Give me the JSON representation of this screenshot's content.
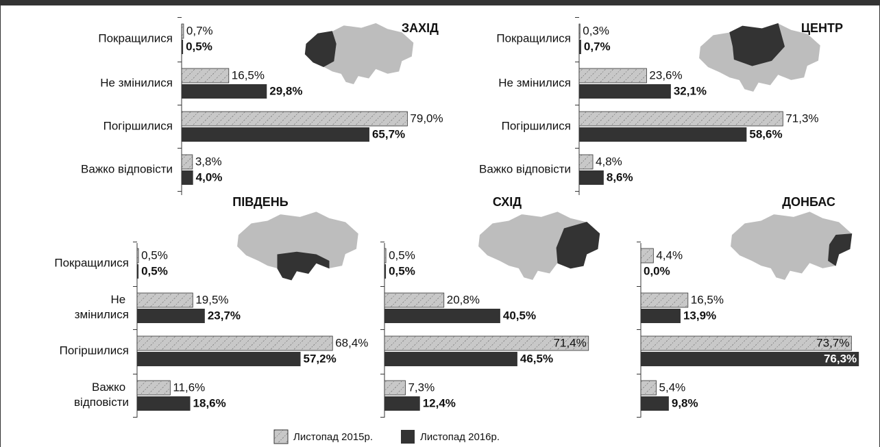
{
  "chart_data": [
    {
      "type": "bar",
      "title": "ЗАХІД",
      "categories": [
        "Покращилися",
        "Не змінилися",
        "Погіршилися",
        "Важко відповісти"
      ],
      "series": [
        {
          "name": "Листопад 2015р.",
          "color": "#c8c8c8",
          "values": [
            0.7,
            16.5,
            79.0,
            3.8
          ],
          "value_labels": [
            "0,7%",
            "16,5%",
            "79,0%",
            "3,8%"
          ]
        },
        {
          "name": "Листопад 2016р.",
          "color": "#333333",
          "values": [
            0.5,
            29.8,
            65.7,
            4.0
          ],
          "value_labels": [
            "0,5%",
            "29,8%",
            "65,7%",
            "4,0%"
          ]
        }
      ]
    },
    {
      "type": "bar",
      "title": "ЦЕНТР",
      "categories": [
        "Покращилися",
        "Не змінилися",
        "Погіршилися",
        "Важко відповісти"
      ],
      "series": [
        {
          "name": "Листопад 2015р.",
          "color": "#c8c8c8",
          "values": [
            0.3,
            23.6,
            71.3,
            4.8
          ],
          "value_labels": [
            "0,3%",
            "23,6%",
            "71,3%",
            "4,8%"
          ]
        },
        {
          "name": "Листопад 2016р.",
          "color": "#333333",
          "values": [
            0.7,
            32.1,
            58.6,
            8.6
          ],
          "value_labels": [
            "0,7%",
            "32,1%",
            "58,6%",
            "8,6%"
          ]
        }
      ]
    },
    {
      "type": "bar",
      "title": "ПІВДЕНЬ",
      "categories": [
        "Покращилися",
        "Не змінилися",
        "Погіршилися",
        "Важко відповісти"
      ],
      "series": [
        {
          "name": "Листопад 2015р.",
          "color": "#c8c8c8",
          "values": [
            0.5,
            19.5,
            68.4,
            11.6
          ],
          "value_labels": [
            "0,5%",
            "19,5%",
            "68,4%",
            "11,6%"
          ]
        },
        {
          "name": "Листопад 2016р.",
          "color": "#333333",
          "values": [
            0.5,
            23.7,
            57.2,
            18.6
          ],
          "value_labels": [
            "0,5%",
            "23,7%",
            "57,2%",
            "18,6%"
          ]
        }
      ]
    },
    {
      "type": "bar",
      "title": "СХІД",
      "series": [
        {
          "name": "Листопад 2015р.",
          "color": "#c8c8c8",
          "values": [
            0.5,
            20.8,
            71.4,
            7.3
          ],
          "value_labels": [
            "0,5%",
            "20,8%",
            "71,4%",
            "7,3%"
          ]
        },
        {
          "name": "Листопад 2016р.",
          "color": "#333333",
          "values": [
            0.5,
            40.5,
            46.5,
            12.4
          ],
          "value_labels": [
            "0,5%",
            "40,5%",
            "46,5%",
            "12,4%"
          ]
        }
      ]
    },
    {
      "type": "bar",
      "title": "ДОНБАС",
      "series": [
        {
          "name": "Листопад 2015р.",
          "color": "#c8c8c8",
          "values": [
            4.4,
            16.5,
            73.7,
            5.4
          ],
          "value_labels": [
            "4,4%",
            "16,5%",
            "73,7%",
            "5,4%"
          ]
        },
        {
          "name": "Листопад 2016р.",
          "color": "#333333",
          "values": [
            0.0,
            13.9,
            76.3,
            9.8
          ],
          "value_labels": [
            "0,0%",
            "13,9%",
            "76,3%",
            "9,8%"
          ]
        }
      ]
    }
  ]
}
